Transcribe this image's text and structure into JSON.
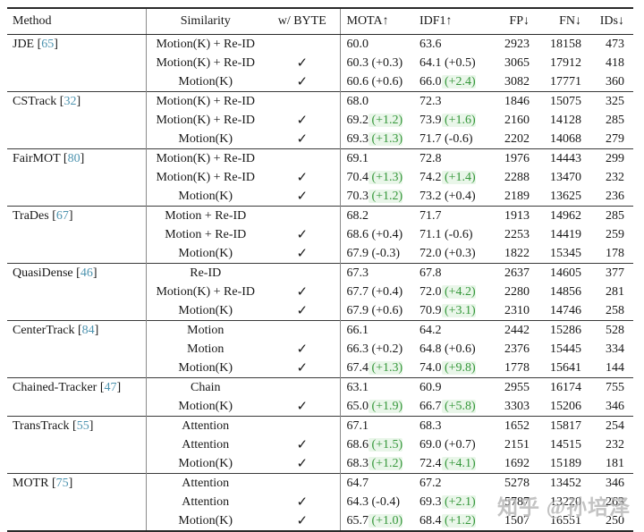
{
  "watermark": "知乎 @孙培泽",
  "colors": {
    "citation": "#4d93af",
    "positive_delta": "#35973a",
    "text": "#181818",
    "rule": "#2a2a2a"
  },
  "table": {
    "headers": [
      {
        "key": "method",
        "label": "Method"
      },
      {
        "key": "similarity",
        "label": "Similarity"
      },
      {
        "key": "byte",
        "label": "w/ BYTE"
      },
      {
        "key": "mota",
        "label": "MOTA↑"
      },
      {
        "key": "idf1",
        "label": "IDF1↑"
      },
      {
        "key": "fp",
        "label": "FP↓"
      },
      {
        "key": "fn",
        "label": "FN↓"
      },
      {
        "key": "ids",
        "label": "IDs↓"
      }
    ],
    "check_glyph": "✓",
    "groups": [
      {
        "method": "JDE",
        "cite": "65",
        "rows": [
          {
            "sim": "Motion(K) + Re-ID",
            "byte": false,
            "mota": "60.0",
            "motaD": "",
            "motaG": false,
            "idf1": "63.6",
            "idf1D": "",
            "idf1G": false,
            "fp": "2923",
            "fn": "18158",
            "ids": "473"
          },
          {
            "sim": "Motion(K) + Re-ID",
            "byte": true,
            "mota": "60.3",
            "motaD": "(+0.3)",
            "motaG": false,
            "idf1": "64.1",
            "idf1D": "(+0.5)",
            "idf1G": false,
            "fp": "3065",
            "fn": "17912",
            "ids": "418"
          },
          {
            "sim": "Motion(K)",
            "byte": true,
            "mota": "60.6",
            "motaD": "(+0.6)",
            "motaG": false,
            "idf1": "66.0",
            "idf1D": "(+2.4)",
            "idf1G": true,
            "fp": "3082",
            "fn": "17771",
            "ids": "360"
          }
        ]
      },
      {
        "method": "CSTrack",
        "cite": "32",
        "rows": [
          {
            "sim": "Motion(K) + Re-ID",
            "byte": false,
            "mota": "68.0",
            "motaD": "",
            "motaG": false,
            "idf1": "72.3",
            "idf1D": "",
            "idf1G": false,
            "fp": "1846",
            "fn": "15075",
            "ids": "325"
          },
          {
            "sim": "Motion(K) + Re-ID",
            "byte": true,
            "mota": "69.2",
            "motaD": "(+1.2)",
            "motaG": true,
            "idf1": "73.9",
            "idf1D": "(+1.6)",
            "idf1G": true,
            "fp": "2160",
            "fn": "14128",
            "ids": "285"
          },
          {
            "sim": "Motion(K)",
            "byte": true,
            "mota": "69.3",
            "motaD": "(+1.3)",
            "motaG": true,
            "idf1": "71.7",
            "idf1D": "(-0.6)",
            "idf1G": false,
            "fp": "2202",
            "fn": "14068",
            "ids": "279"
          }
        ]
      },
      {
        "method": "FairMOT",
        "cite": "80",
        "rows": [
          {
            "sim": "Motion(K) + Re-ID",
            "byte": false,
            "mota": "69.1",
            "motaD": "",
            "motaG": false,
            "idf1": "72.8",
            "idf1D": "",
            "idf1G": false,
            "fp": "1976",
            "fn": "14443",
            "ids": "299"
          },
          {
            "sim": "Motion(K) + Re-ID",
            "byte": true,
            "mota": "70.4",
            "motaD": "(+1.3)",
            "motaG": true,
            "idf1": "74.2",
            "idf1D": "(+1.4)",
            "idf1G": true,
            "fp": "2288",
            "fn": "13470",
            "ids": "232"
          },
          {
            "sim": "Motion(K)",
            "byte": true,
            "mota": "70.3",
            "motaD": "(+1.2)",
            "motaG": true,
            "idf1": "73.2",
            "idf1D": "(+0.4)",
            "idf1G": false,
            "fp": "2189",
            "fn": "13625",
            "ids": "236"
          }
        ]
      },
      {
        "method": "TraDes",
        "cite": "67",
        "rows": [
          {
            "sim": "Motion + Re-ID",
            "byte": false,
            "mota": "68.2",
            "motaD": "",
            "motaG": false,
            "idf1": "71.7",
            "idf1D": "",
            "idf1G": false,
            "fp": "1913",
            "fn": "14962",
            "ids": "285"
          },
          {
            "sim": "Motion + Re-ID",
            "byte": true,
            "mota": "68.6",
            "motaD": "(+0.4)",
            "motaG": false,
            "idf1": "71.1",
            "idf1D": "(-0.6)",
            "idf1G": false,
            "fp": "2253",
            "fn": "14419",
            "ids": "259"
          },
          {
            "sim": "Motion(K)",
            "byte": true,
            "mota": "67.9",
            "motaD": "(-0.3)",
            "motaG": false,
            "idf1": "72.0",
            "idf1D": "(+0.3)",
            "idf1G": false,
            "fp": "1822",
            "fn": "15345",
            "ids": "178"
          }
        ]
      },
      {
        "method": "QuasiDense",
        "cite": "46",
        "rows": [
          {
            "sim": "Re-ID",
            "byte": false,
            "mota": "67.3",
            "motaD": "",
            "motaG": false,
            "idf1": "67.8",
            "idf1D": "",
            "idf1G": false,
            "fp": "2637",
            "fn": "14605",
            "ids": "377"
          },
          {
            "sim": "Motion(K) + Re-ID",
            "byte": true,
            "mota": "67.7",
            "motaD": "(+0.4)",
            "motaG": false,
            "idf1": "72.0",
            "idf1D": "(+4.2)",
            "idf1G": true,
            "fp": "2280",
            "fn": "14856",
            "ids": "281"
          },
          {
            "sim": "Motion(K)",
            "byte": true,
            "mota": "67.9",
            "motaD": "(+0.6)",
            "motaG": false,
            "idf1": "70.9",
            "idf1D": "(+3.1)",
            "idf1G": true,
            "fp": "2310",
            "fn": "14746",
            "ids": "258"
          }
        ]
      },
      {
        "method": "CenterTrack",
        "cite": "84",
        "rows": [
          {
            "sim": "Motion",
            "byte": false,
            "mota": "66.1",
            "motaD": "",
            "motaG": false,
            "idf1": "64.2",
            "idf1D": "",
            "idf1G": false,
            "fp": "2442",
            "fn": "15286",
            "ids": "528"
          },
          {
            "sim": "Motion",
            "byte": true,
            "mota": "66.3",
            "motaD": "(+0.2)",
            "motaG": false,
            "idf1": "64.8",
            "idf1D": "(+0.6)",
            "idf1G": false,
            "fp": "2376",
            "fn": "15445",
            "ids": "334"
          },
          {
            "sim": "Motion(K)",
            "byte": true,
            "mota": "67.4",
            "motaD": "(+1.3)",
            "motaG": true,
            "idf1": "74.0",
            "idf1D": "(+9.8)",
            "idf1G": true,
            "fp": "1778",
            "fn": "15641",
            "ids": "144"
          }
        ]
      },
      {
        "method": "Chained-Tracker",
        "cite": "47",
        "rows": [
          {
            "sim": "Chain",
            "byte": false,
            "mota": "63.1",
            "motaD": "",
            "motaG": false,
            "idf1": "60.9",
            "idf1D": "",
            "idf1G": false,
            "fp": "2955",
            "fn": "16174",
            "ids": "755"
          },
          {
            "sim": "Motion(K)",
            "byte": true,
            "mota": "65.0",
            "motaD": "(+1.9)",
            "motaG": true,
            "idf1": "66.7",
            "idf1D": "(+5.8)",
            "idf1G": true,
            "fp": "3303",
            "fn": "15206",
            "ids": "346"
          }
        ]
      },
      {
        "method": "TransTrack",
        "cite": "55",
        "rows": [
          {
            "sim": "Attention",
            "byte": false,
            "mota": "67.1",
            "motaD": "",
            "motaG": false,
            "idf1": "68.3",
            "idf1D": "",
            "idf1G": false,
            "fp": "1652",
            "fn": "15817",
            "ids": "254"
          },
          {
            "sim": "Attention",
            "byte": true,
            "mota": "68.6",
            "motaD": "(+1.5)",
            "motaG": true,
            "idf1": "69.0",
            "idf1D": "(+0.7)",
            "idf1G": false,
            "fp": "2151",
            "fn": "14515",
            "ids": "232"
          },
          {
            "sim": "Motion(K)",
            "byte": true,
            "mota": "68.3",
            "motaD": "(+1.2)",
            "motaG": true,
            "idf1": "72.4",
            "idf1D": "(+4.1)",
            "idf1G": true,
            "fp": "1692",
            "fn": "15189",
            "ids": "181"
          }
        ]
      },
      {
        "method": "MOTR",
        "cite": "75",
        "rows": [
          {
            "sim": "Attention",
            "byte": false,
            "mota": "64.7",
            "motaD": "",
            "motaG": false,
            "idf1": "67.2",
            "idf1D": "",
            "idf1G": false,
            "fp": "5278",
            "fn": "13452",
            "ids": "346"
          },
          {
            "sim": "Attention",
            "byte": true,
            "mota": "64.3",
            "motaD": "(-0.4)",
            "motaG": false,
            "idf1": "69.3",
            "idf1D": "(+2.1)",
            "idf1G": true,
            "fp": "5787",
            "fn": "13220",
            "ids": "263"
          },
          {
            "sim": "Motion(K)",
            "byte": true,
            "mota": "65.7",
            "motaD": "(+1.0)",
            "motaG": true,
            "idf1": "68.4",
            "idf1D": "(+1.2)",
            "idf1G": true,
            "fp": "1507",
            "fn": "16551",
            "ids": "250"
          }
        ]
      }
    ]
  }
}
